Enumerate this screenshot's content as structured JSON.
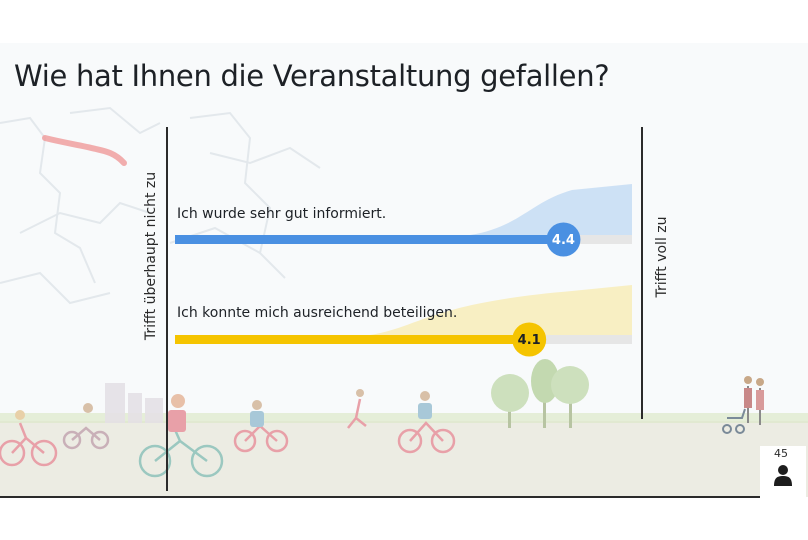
{
  "title": "Wie hat Ihnen die Veranstaltung gefallen?",
  "participant_count": "45",
  "colors": {
    "series1": "#4a90e2",
    "series1_area": "#c6dcf3",
    "series2": "#f5c400",
    "series2_area": "#f8ecb8",
    "track": "#e6e6e6"
  },
  "icons": [
    "person-icon",
    "cyclist-illustration",
    "tree-illustration",
    "city-map-illustration"
  ],
  "chart_data": {
    "type": "bar",
    "orientation": "horizontal",
    "xlim": [
      1,
      5
    ],
    "scale_left_label": "Trifft überhaupt nicht zu",
    "scale_right_label": "Trifft voll zu",
    "categories": [
      "Ich wurde sehr gut informiert.",
      "Ich konnte mich ausreichend beteiligen."
    ],
    "values": [
      4.4,
      4.1
    ],
    "value_labels": [
      "4.4",
      "4.1"
    ]
  }
}
